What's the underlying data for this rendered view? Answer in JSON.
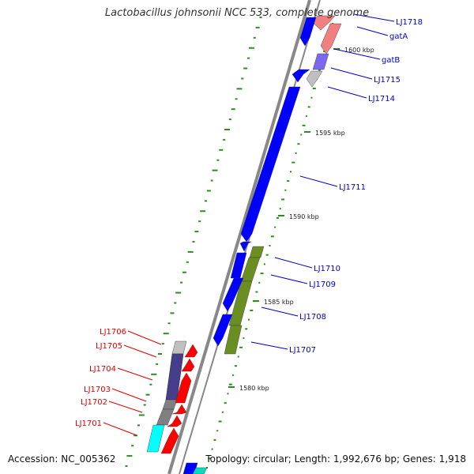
{
  "title": "Lactobacillus johnsonii NCC 533, complete genome",
  "footer": {
    "accession": "Accession: NC_005362",
    "summary": "Topology: circular; Length: 1,992,676 bp; Genes: 1,918"
  },
  "colors": {
    "backbone": "#888888",
    "forward_label": "#0000cc",
    "reverse_label": "#dd0000",
    "gc_dots": "#2e8b22"
  },
  "scale_ticks": [
    "1600 kbp",
    "1595 kbp",
    "1590 kbp",
    "1585 kbp",
    "1580 kbp"
  ],
  "genes": [
    {
      "label": "LJ1718",
      "strand": "forward",
      "color": "#f08080"
    },
    {
      "label": "gatA",
      "strand": "forward",
      "color": "#f08080"
    },
    {
      "label": "gatB",
      "strand": "forward",
      "color": "#7b68ee"
    },
    {
      "label": "LJ1715",
      "strand": "forward",
      "color": "#c0c0c0"
    },
    {
      "label": "LJ1714",
      "strand": "forward",
      "color": "#0000ff"
    },
    {
      "label": "LJ1711",
      "strand": "forward",
      "color": "#0000ff"
    },
    {
      "label": "LJ1710",
      "strand": "forward",
      "color": "#6b8e23"
    },
    {
      "label": "LJ1709",
      "strand": "forward",
      "color": "#6b8e23"
    },
    {
      "label": "LJ1708",
      "strand": "forward",
      "color": "#6b8e23"
    },
    {
      "label": "LJ1707",
      "strand": "forward",
      "color": "#6b8e23"
    },
    {
      "label": "LJ1706",
      "strand": "reverse",
      "color": "#c0c0c0"
    },
    {
      "label": "LJ1705",
      "strand": "reverse",
      "color": "#483d8b"
    },
    {
      "label": "LJ1704",
      "strand": "reverse",
      "color": "#483d8b"
    },
    {
      "label": "LJ1703",
      "strand": "reverse",
      "color": "#808080"
    },
    {
      "label": "LJ1702",
      "strand": "reverse",
      "color": "#808080"
    },
    {
      "label": "LJ1701",
      "strand": "reverse",
      "color": "#00ffff"
    }
  ]
}
